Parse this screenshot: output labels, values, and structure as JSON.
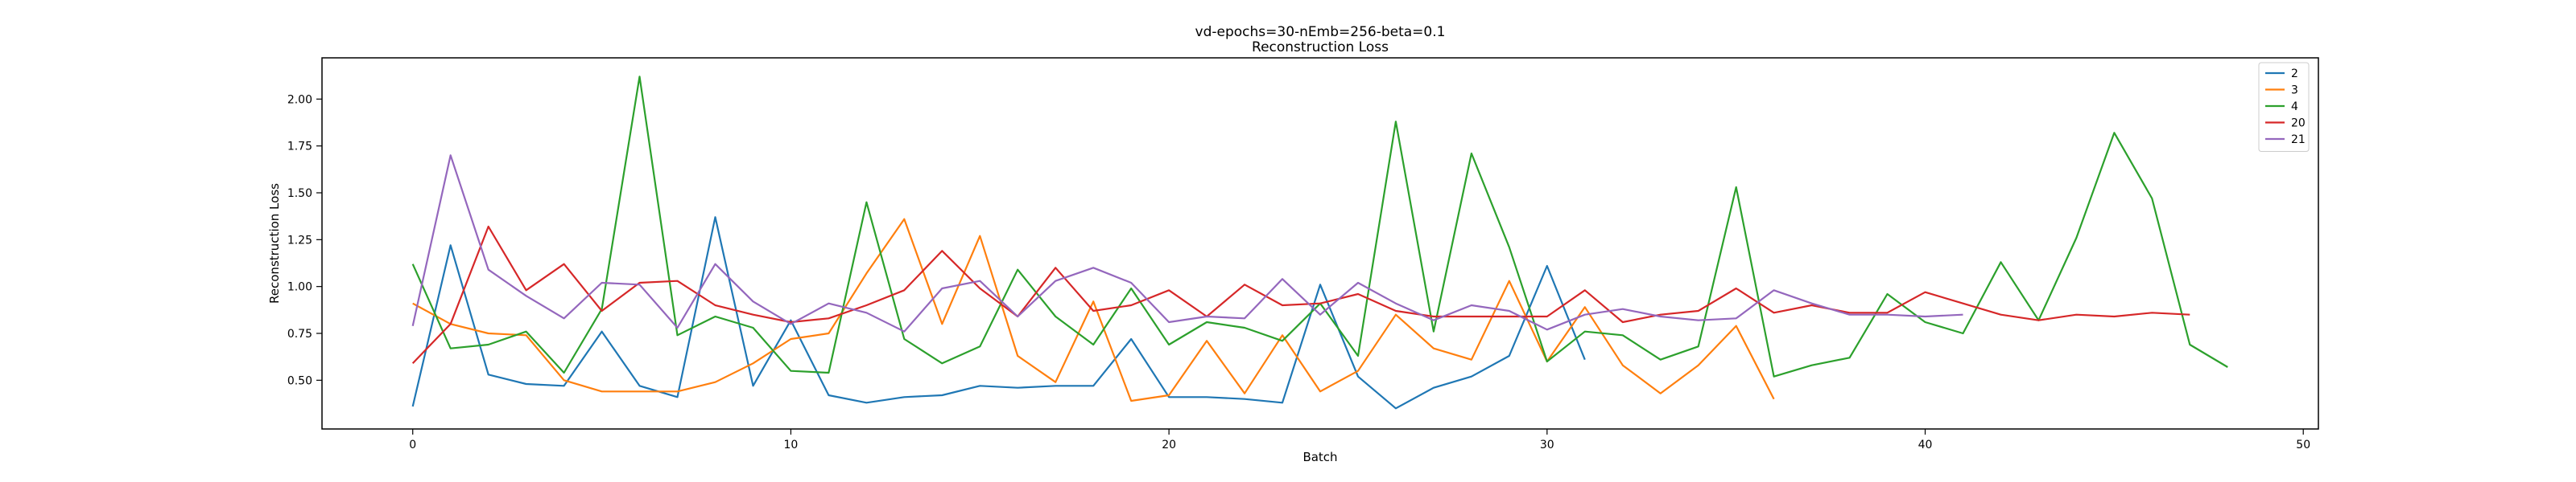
{
  "chart_data": {
    "type": "line",
    "title": "vd-epochs=30-nEmb=256-beta=0.1",
    "subtitle": "Reconstruction Loss",
    "xlabel": "Batch",
    "ylabel": "Reconstruction Loss",
    "xlim": [
      -2.4,
      50.4
    ],
    "ylim": [
      0.24,
      2.22
    ],
    "xticks": [
      0,
      10,
      20,
      30,
      40,
      50
    ],
    "yticks": [
      0.5,
      0.75,
      1.0,
      1.25,
      1.5,
      1.75,
      2.0
    ],
    "xtick_labels": [
      "0",
      "10",
      "20",
      "30",
      "40",
      "50"
    ],
    "ytick_labels": [
      "0.50",
      "0.75",
      "1.00",
      "1.25",
      "1.50",
      "1.75",
      "2.00"
    ],
    "grid": false,
    "legend": "top-right",
    "series": [
      {
        "name": "2",
        "color": "#1f77b4",
        "values": [
          0.36,
          1.22,
          0.53,
          0.48,
          0.47,
          0.76,
          0.47,
          0.41,
          1.37,
          0.47,
          0.82,
          0.42,
          0.38,
          0.41,
          0.42,
          0.47,
          0.46,
          0.47,
          0.47,
          0.72,
          0.41,
          0.41,
          0.4,
          0.38,
          1.01,
          0.52,
          0.35,
          0.46,
          0.52,
          0.63,
          1.11,
          0.61
        ]
      },
      {
        "name": "3",
        "color": "#ff7f0e",
        "values": [
          0.91,
          0.8,
          0.75,
          0.74,
          0.5,
          0.44,
          0.44,
          0.44,
          0.49,
          0.59,
          0.72,
          0.75,
          1.07,
          1.36,
          0.8,
          1.27,
          0.63,
          0.49,
          0.92,
          0.39,
          0.42,
          0.71,
          0.43,
          0.74,
          0.44,
          0.55,
          0.85,
          0.67,
          0.61,
          1.03,
          0.6,
          0.89,
          0.58,
          0.43,
          0.58,
          0.79,
          0.4
        ]
      },
      {
        "name": "4",
        "color": "#2ca02c",
        "values": [
          1.12,
          0.67,
          0.69,
          0.76,
          0.54,
          0.88,
          2.12,
          0.74,
          0.84,
          0.78,
          0.55,
          0.54,
          1.45,
          0.72,
          0.59,
          0.68,
          1.09,
          0.84,
          0.69,
          0.99,
          0.69,
          0.81,
          0.78,
          0.71,
          0.91,
          0.63,
          1.88,
          0.76,
          1.71,
          1.21,
          0.6,
          0.76,
          0.74,
          0.61,
          0.68,
          1.53,
          0.52,
          0.58,
          0.62,
          0.96,
          0.81,
          0.75,
          1.13,
          0.82,
          1.26,
          1.82,
          1.47,
          0.69,
          0.57
        ]
      },
      {
        "name": "20",
        "color": "#d62728",
        "values": [
          0.59,
          0.8,
          1.32,
          0.98,
          1.12,
          0.87,
          1.02,
          1.03,
          0.9,
          0.85,
          0.81,
          0.83,
          0.9,
          0.98,
          1.19,
          0.99,
          0.84,
          1.1,
          0.87,
          0.9,
          0.98,
          0.84,
          1.01,
          0.9,
          0.91,
          0.96,
          0.87,
          0.84,
          0.84,
          0.84,
          0.84,
          0.98,
          0.81,
          0.85,
          0.87,
          0.99,
          0.86,
          0.9,
          0.86,
          0.86,
          0.97,
          0.91,
          0.85,
          0.82,
          0.85,
          0.84,
          0.86,
          0.85
        ]
      },
      {
        "name": "21",
        "color": "#9467bd",
        "values": [
          0.79,
          1.7,
          1.09,
          0.95,
          0.83,
          1.02,
          1.01,
          0.78,
          1.12,
          0.92,
          0.8,
          0.91,
          0.86,
          0.76,
          0.99,
          1.03,
          0.84,
          1.03,
          1.1,
          1.02,
          0.81,
          0.84,
          0.83,
          1.04,
          0.85,
          1.02,
          0.91,
          0.82,
          0.9,
          0.87,
          0.77,
          0.85,
          0.88,
          0.84,
          0.82,
          0.83,
          0.98,
          0.91,
          0.85,
          0.85,
          0.84,
          0.85
        ]
      }
    ]
  }
}
